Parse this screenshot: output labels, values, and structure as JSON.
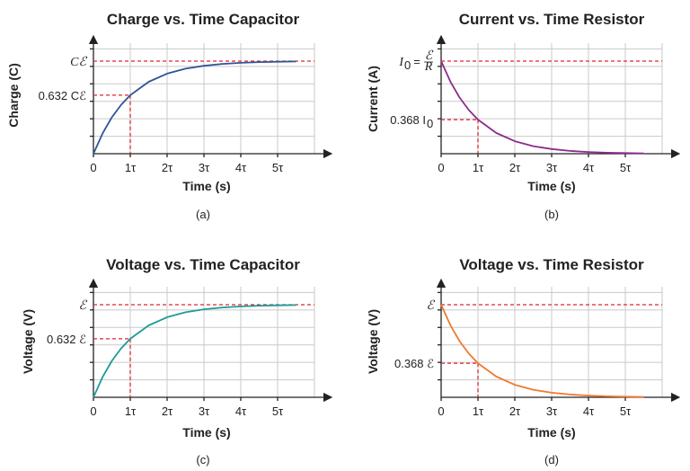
{
  "colors": {
    "charge_capacitor": "#2f5597",
    "current_resistor": "#8b2c8c",
    "voltage_capacitor": "#1e9a9a",
    "voltage_resistor": "#ee7a2e",
    "reference": "#e0262b"
  },
  "chart_data": [
    {
      "type": "line",
      "panel": "(a)",
      "title": "Charge vs. Time Capacitor",
      "xlabel": "Time (s)",
      "ylabel": "Charge (C)",
      "x_ticks": [
        "0",
        "1τ",
        "2τ",
        "3τ",
        "4τ",
        "5τ"
      ],
      "xlim": [
        0,
        6
      ],
      "ylim": [
        0,
        1.05
      ],
      "function": "1 - exp(-t)",
      "x": [
        0,
        0.25,
        0.5,
        0.75,
        1,
        1.5,
        2,
        2.5,
        3,
        3.5,
        4,
        4.5,
        5,
        5.5
      ],
      "y": [
        0,
        0.221,
        0.393,
        0.528,
        0.632,
        0.777,
        0.865,
        0.918,
        0.95,
        0.97,
        0.982,
        0.989,
        0.993,
        0.996
      ],
      "asymptote": {
        "y": 1.0,
        "label": "Cℰ"
      },
      "marker": {
        "x": 1,
        "y": 0.632,
        "label": "0.632 Cℰ"
      },
      "grid": true,
      "line_color": "#2f5597"
    },
    {
      "type": "line",
      "panel": "(b)",
      "title": "Current vs. Time Resistor",
      "xlabel": "Time (s)",
      "ylabel": "Current (A)",
      "x_ticks": [
        "0",
        "1τ",
        "2τ",
        "3τ",
        "4τ",
        "5τ"
      ],
      "xlim": [
        0,
        6
      ],
      "ylim": [
        0,
        1.05
      ],
      "function": "exp(-t)",
      "x": [
        0,
        0.25,
        0.5,
        0.75,
        1,
        1.5,
        2,
        2.5,
        3,
        3.5,
        4,
        4.5,
        5,
        5.5
      ],
      "y": [
        1,
        0.779,
        0.607,
        0.472,
        0.368,
        0.223,
        0.135,
        0.082,
        0.05,
        0.03,
        0.018,
        0.011,
        0.007,
        0.004
      ],
      "asymptote": {
        "y": 1.0,
        "label_main": "I",
        "label_sub": "0",
        "label_eq": "=",
        "label_num": "ℰ",
        "label_den": "R"
      },
      "marker": {
        "x": 1,
        "y": 0.368,
        "label_main": "0.368 I",
        "label_sub": "0"
      },
      "grid": true,
      "line_color": "#8b2c8c"
    },
    {
      "type": "line",
      "panel": "(c)",
      "title": "Voltage vs. Time Capacitor",
      "xlabel": "Time (s)",
      "ylabel": "Voltage (V)",
      "x_ticks": [
        "0",
        "1τ",
        "2τ",
        "3τ",
        "4τ",
        "5τ"
      ],
      "xlim": [
        0,
        6
      ],
      "ylim": [
        0,
        1.05
      ],
      "function": "1 - exp(-t)",
      "x": [
        0,
        0.25,
        0.5,
        0.75,
        1,
        1.5,
        2,
        2.5,
        3,
        3.5,
        4,
        4.5,
        5,
        5.5
      ],
      "y": [
        0,
        0.221,
        0.393,
        0.528,
        0.632,
        0.777,
        0.865,
        0.918,
        0.95,
        0.97,
        0.982,
        0.989,
        0.993,
        0.996
      ],
      "asymptote": {
        "y": 1.0,
        "label": "ℰ"
      },
      "marker": {
        "x": 1,
        "y": 0.632,
        "label": "0.632 ℰ"
      },
      "grid": true,
      "line_color": "#1e9a9a"
    },
    {
      "type": "line",
      "panel": "(d)",
      "title": "Voltage vs. Time Resistor",
      "xlabel": "Time (s)",
      "ylabel": "Voltage (V)",
      "x_ticks": [
        "0",
        "1τ",
        "2τ",
        "3τ",
        "4τ",
        "5τ"
      ],
      "xlim": [
        0,
        6
      ],
      "ylim": [
        0,
        1.05
      ],
      "function": "exp(-t)",
      "x": [
        0,
        0.25,
        0.5,
        0.75,
        1,
        1.5,
        2,
        2.5,
        3,
        3.5,
        4,
        4.5,
        5,
        5.5
      ],
      "y": [
        1,
        0.779,
        0.607,
        0.472,
        0.368,
        0.223,
        0.135,
        0.082,
        0.05,
        0.03,
        0.018,
        0.011,
        0.007,
        0.004
      ],
      "asymptote": {
        "y": 1.0,
        "label": "ℰ"
      },
      "marker": {
        "x": 1,
        "y": 0.368,
        "label": "0.368 ℰ"
      },
      "grid": true,
      "line_color": "#ee7a2e"
    }
  ]
}
